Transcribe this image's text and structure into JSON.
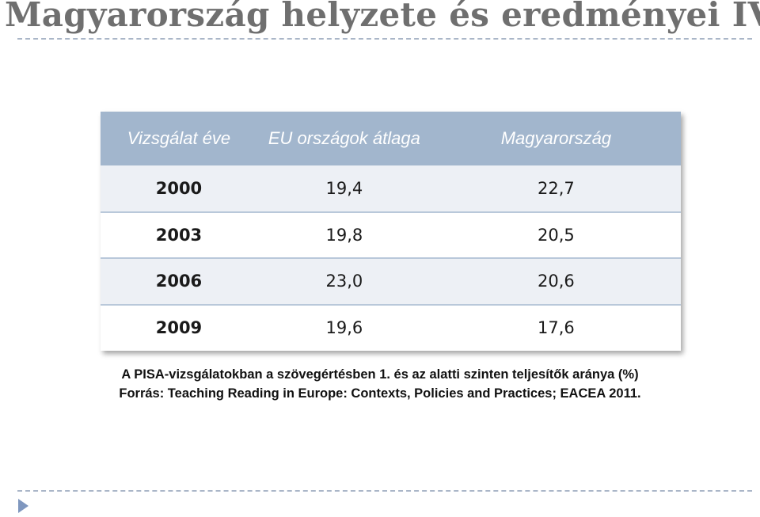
{
  "slide": {
    "title": "Magyarország helyzete és eredményei IV."
  },
  "table": {
    "headers": [
      "Vizsgálat éve",
      "EU országok átlaga",
      "Magyarország"
    ],
    "rows": [
      {
        "year": "2000",
        "eu": "19,4",
        "hu": "22,7"
      },
      {
        "year": "2003",
        "eu": "19,8",
        "hu": "20,5"
      },
      {
        "year": "2006",
        "eu": "23,0",
        "hu": "20,6"
      },
      {
        "year": "2009",
        "eu": "19,6",
        "hu": "17,6"
      }
    ]
  },
  "caption": {
    "line1": "A PISA-vizsgálatokban a szövegértésben 1. és az alatti szinten teljesítők aránya (%)",
    "line2": "Forrás: Teaching Reading in Europe: Contexts, Policies and Practices; EACEA 2011."
  },
  "colors": {
    "header_bg": "#a2b6cd",
    "row_shade": "#edf0f5",
    "title": "#6f6f6f",
    "bullet": "#7f97bf"
  },
  "icons": {
    "bullet": "triangle-right-icon"
  }
}
